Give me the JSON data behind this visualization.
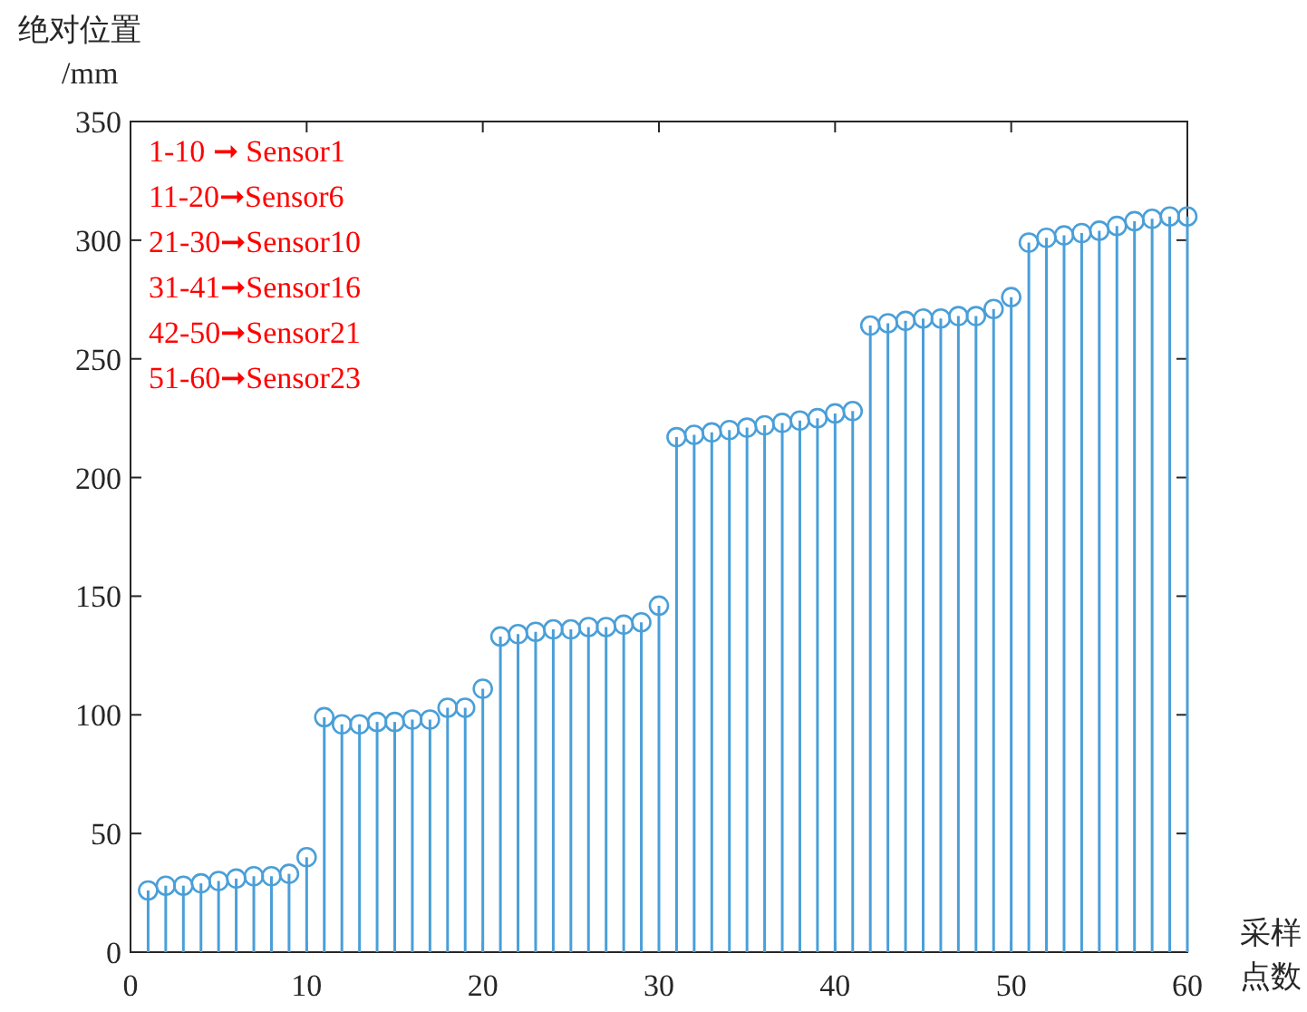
{
  "chart_data": {
    "type": "lollipop",
    "xlabel": "采样点数",
    "ylabel": "绝对位置 /mm",
    "annotations": [
      "1-10 ➞ Sensor1",
      "11-20➞Sensor6",
      "21-30➞Sensor10",
      "31-41➞Sensor16",
      "42-50➞Sensor21",
      "51-60➞Sensor23"
    ],
    "x": [
      1,
      2,
      3,
      4,
      5,
      6,
      7,
      8,
      9,
      10,
      11,
      12,
      13,
      14,
      15,
      16,
      17,
      18,
      19,
      20,
      21,
      22,
      23,
      24,
      25,
      26,
      27,
      28,
      29,
      30,
      31,
      32,
      33,
      34,
      35,
      36,
      37,
      38,
      39,
      40,
      41,
      42,
      43,
      44,
      45,
      46,
      47,
      48,
      49,
      50,
      51,
      52,
      53,
      54,
      55,
      56,
      57,
      58,
      59,
      60
    ],
    "series": [
      {
        "color": "#4a9fd8",
        "values": [
          26,
          28,
          28,
          29,
          30,
          31,
          32,
          32,
          33,
          40,
          99,
          96,
          96,
          97,
          97,
          98,
          98,
          103,
          103,
          111,
          133,
          134,
          135,
          136,
          136,
          137,
          137,
          138,
          139,
          146,
          217,
          218,
          219,
          220,
          221,
          222,
          223,
          224,
          225,
          227,
          228,
          264,
          265,
          266,
          267,
          267,
          268,
          268,
          271,
          276,
          299,
          301,
          302,
          303,
          304,
          306,
          308,
          309,
          310,
          310
        ]
      }
    ],
    "xlim": [
      0,
      60
    ],
    "xticks": [
      0,
      10,
      20,
      30,
      40,
      50,
      60
    ],
    "ylim": [
      0,
      350
    ],
    "yticks": [
      0,
      50,
      100,
      150,
      200,
      250,
      300,
      350
    ],
    "marker": "circle",
    "grid": false
  }
}
